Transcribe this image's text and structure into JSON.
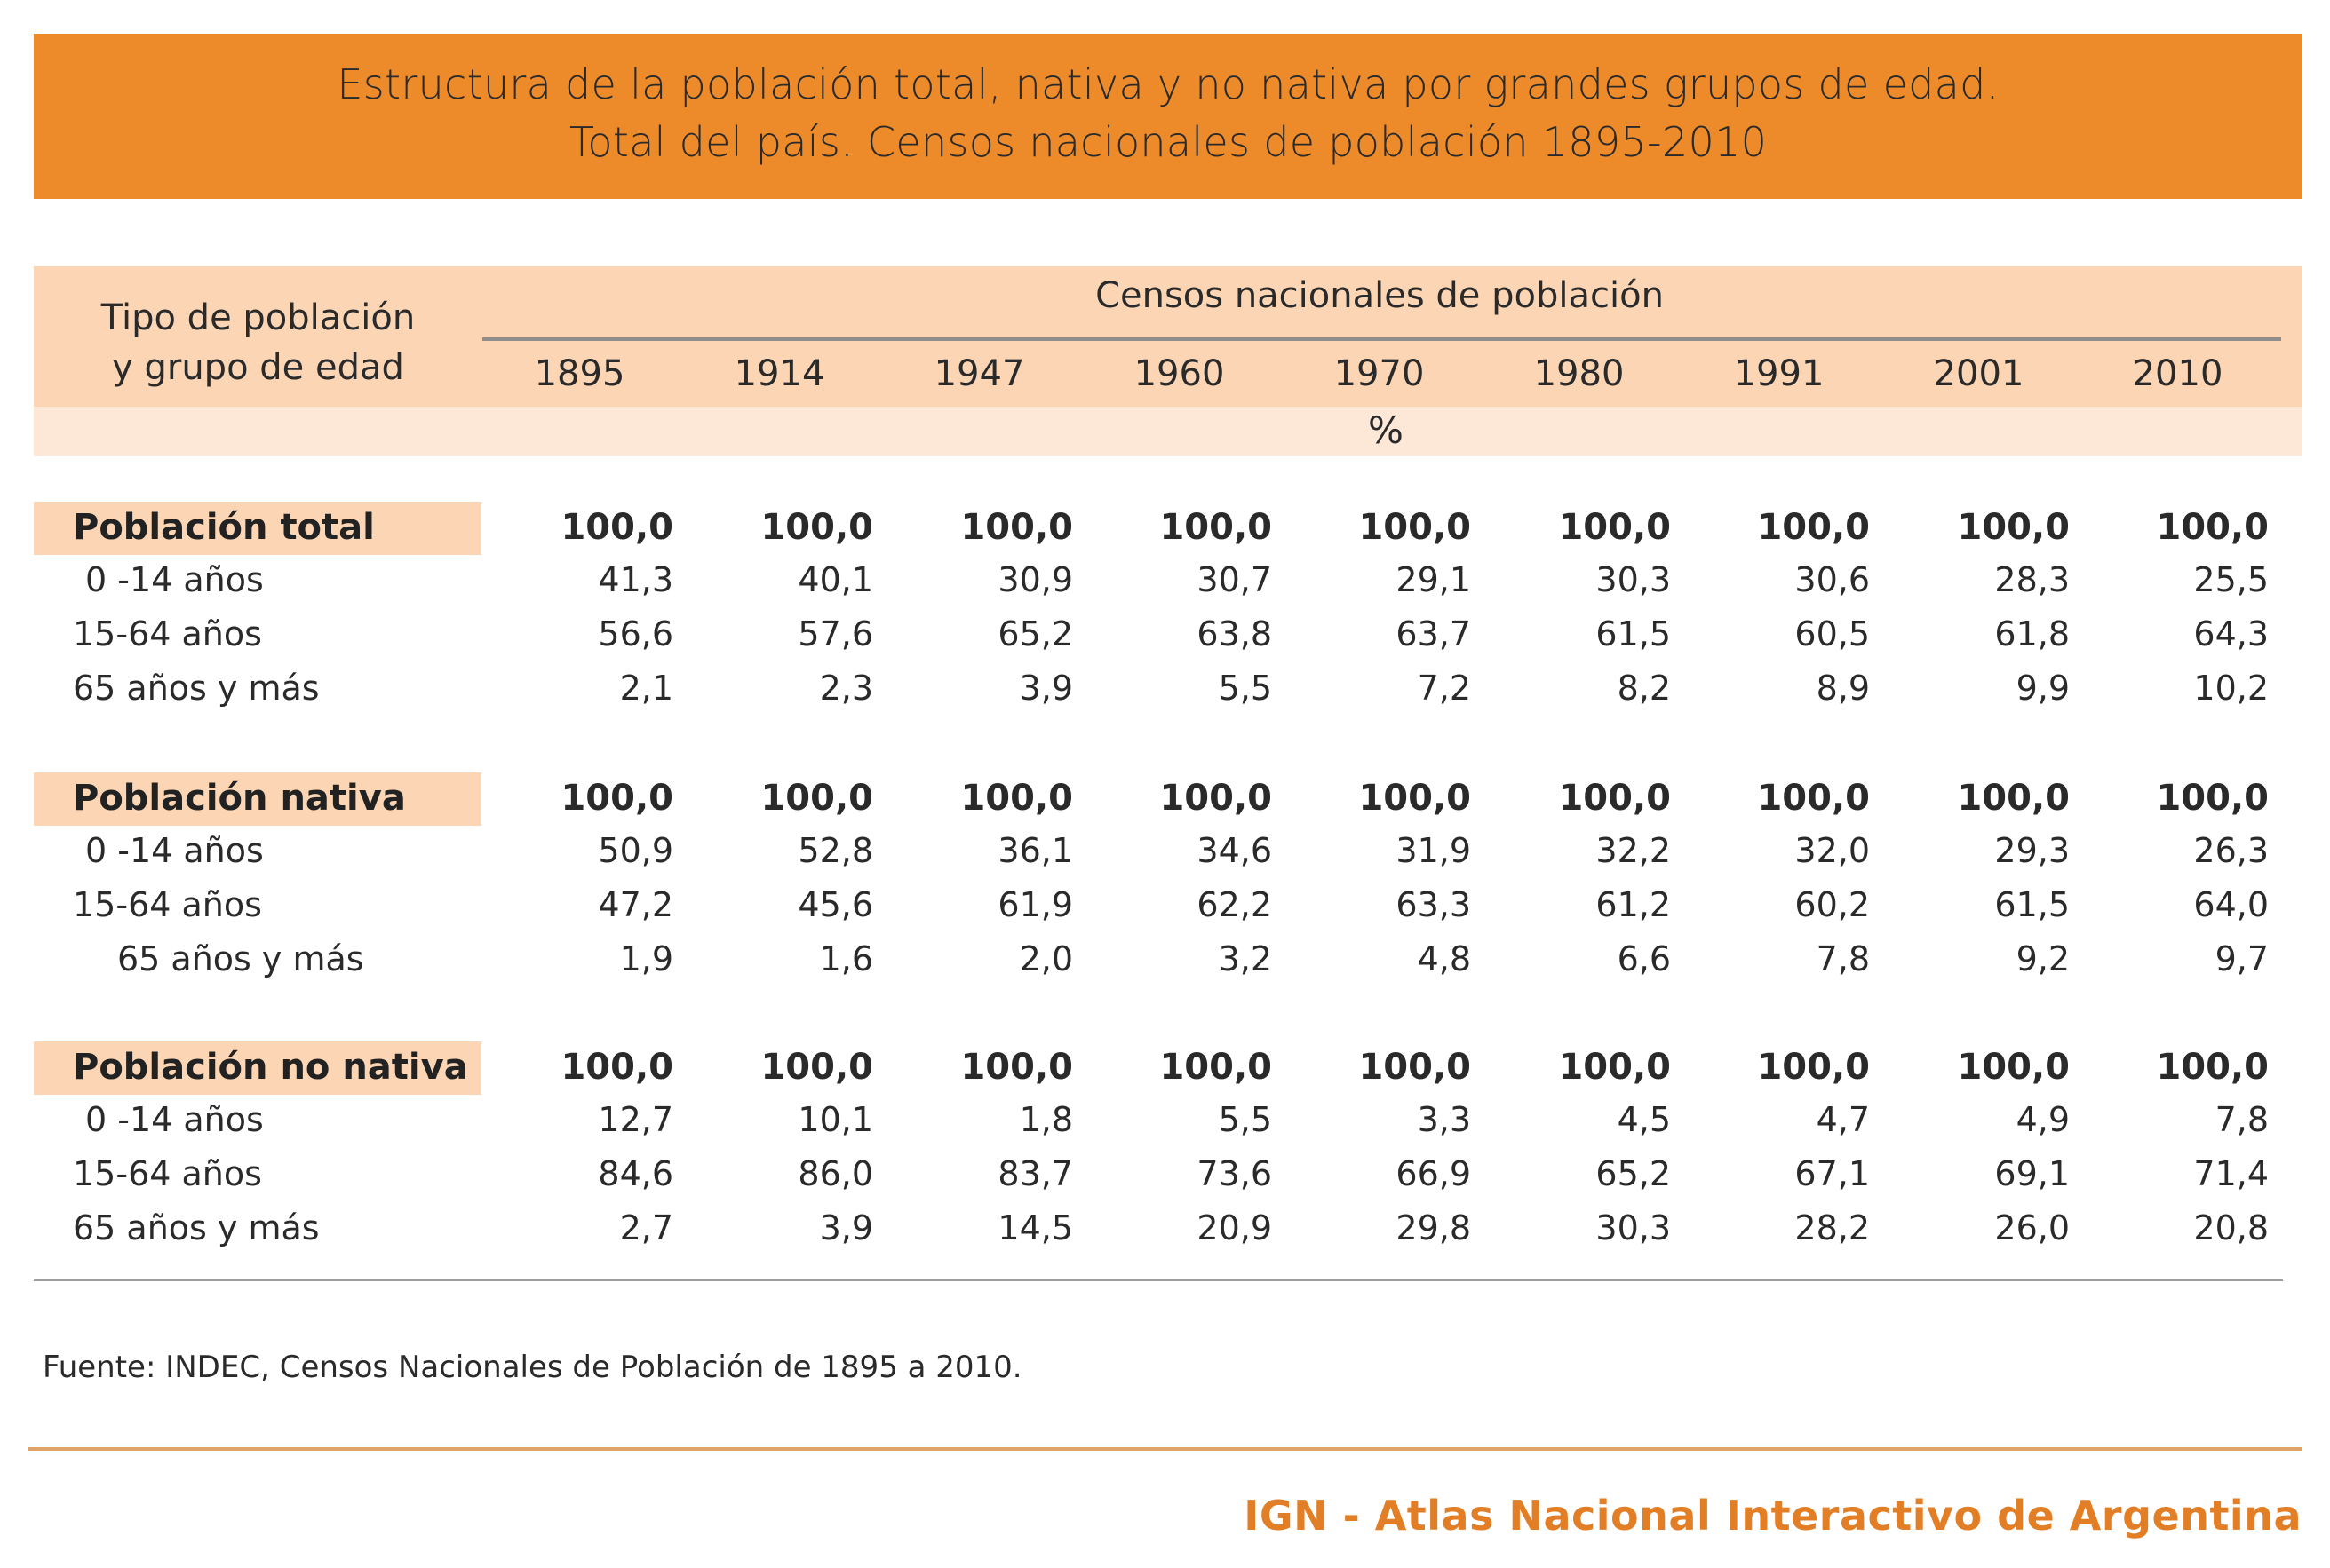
{
  "title": {
    "line1": "Estructura de la población total, nativa y no nativa por grandes grupos de edad.",
    "line2": "Total del país. Censos nacionales de población 1895-2010"
  },
  "header": {
    "row_header_line1": "Tipo de población",
    "row_header_line2": "y grupo de edad",
    "group_label": "Censos nacionales de población",
    "years": [
      "1895",
      "1914",
      "1947",
      "1960",
      "1970",
      "1980",
      "1991",
      "2001",
      "2010"
    ],
    "unit": "%"
  },
  "sections": [
    {
      "label": "Población total",
      "totals": [
        "100,0",
        "100,0",
        "100,0",
        "100,0",
        "100,0",
        "100,0",
        "100,0",
        "100,0",
        "100,0"
      ],
      "rows": [
        {
          "label": "0 -14 años",
          "values": [
            "41,3",
            "40,1",
            "30,9",
            "30,7",
            "29,1",
            "30,3",
            "30,6",
            "28,3",
            "25,5"
          ]
        },
        {
          "label": "15-64 años",
          "values": [
            "56,6",
            "57,6",
            "65,2",
            "63,8",
            "63,7",
            "61,5",
            "60,5",
            "61,8",
            "64,3"
          ]
        },
        {
          "label": "65 años y más",
          "values": [
            "2,1",
            "2,3",
            "3,9",
            "5,5",
            "7,2",
            "8,2",
            "8,9",
            "9,9",
            "10,2"
          ]
        }
      ]
    },
    {
      "label": "Población nativa",
      "totals": [
        "100,0",
        "100,0",
        "100,0",
        "100,0",
        "100,0",
        "100,0",
        "100,0",
        "100,0",
        "100,0"
      ],
      "rows": [
        {
          "label": "0 -14 años",
          "values": [
            "50,9",
            "52,8",
            "36,1",
            "34,6",
            "31,9",
            "32,2",
            "32,0",
            "29,3",
            "26,3"
          ]
        },
        {
          "label": "15-64 años",
          "values": [
            "47,2",
            "45,6",
            "61,9",
            "62,2",
            "63,3",
            "61,2",
            "60,2",
            "61,5",
            "64,0"
          ]
        },
        {
          "label": "65 años y más",
          "values": [
            "1,9",
            "1,6",
            "2,0",
            "3,2",
            "4,8",
            "6,6",
            "7,8",
            "9,2",
            "9,7"
          ]
        }
      ]
    },
    {
      "label": "Población no nativa",
      "totals": [
        "100,0",
        "100,0",
        "100,0",
        "100,0",
        "100,0",
        "100,0",
        "100,0",
        "100,0",
        "100,0"
      ],
      "rows": [
        {
          "label": "0 -14 años",
          "values": [
            "12,7",
            "10,1",
            "1,8",
            "5,5",
            "3,3",
            "4,5",
            "4,7",
            "4,9",
            "7,8"
          ]
        },
        {
          "label": "15-64 años",
          "values": [
            "84,6",
            "86,0",
            "83,7",
            "73,6",
            "66,9",
            "65,2",
            "67,1",
            "69,1",
            "71,4"
          ]
        },
        {
          "label": "65 años y más",
          "values": [
            "2,7",
            "3,9",
            "14,5",
            "20,9",
            "29,8",
            "30,3",
            "28,2",
            "26,0",
            "20,8"
          ]
        }
      ]
    }
  ],
  "source": "Fuente: INDEC, Censos Nacionales de Población de 1895 a 2010.",
  "footer": "IGN - Atlas Nacional Interactivo de Argentina",
  "colors": {
    "banner": "#ed8a2a",
    "header_band": "#fbd5b4",
    "unit_band": "#fde8d8",
    "footer_text": "#e27f26"
  }
}
